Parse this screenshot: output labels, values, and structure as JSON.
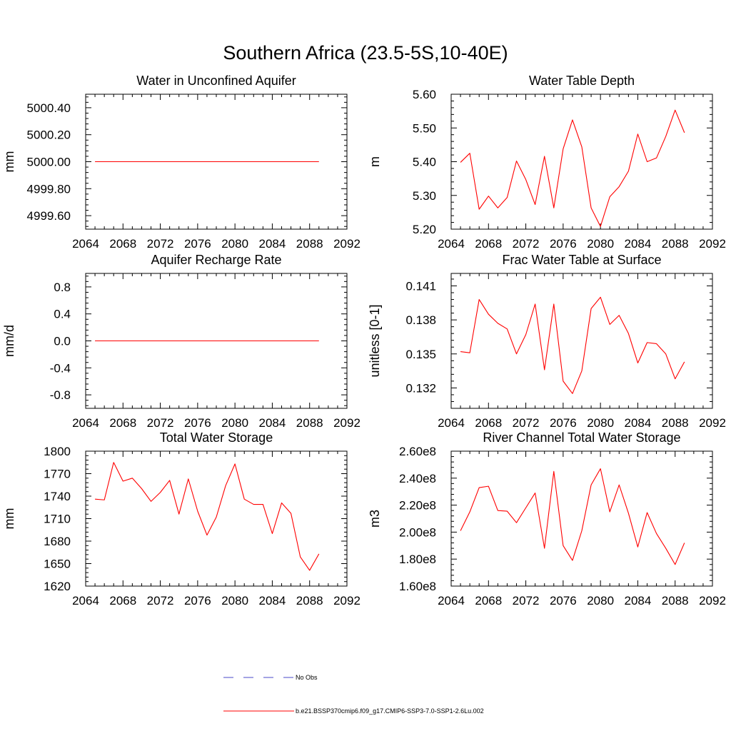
{
  "figure_title": "Southern Africa (23.5-5S,10-40E)",
  "colors": {
    "model": "#ff0000",
    "obs": "#4a4ac8"
  },
  "legend": {
    "obs_label": "No Obs",
    "model_label": "b.e21.BSSP370cmip6.f09_g17.CMIP6-SSP3-7.0-SSP1-2.6Lu.002"
  },
  "chart_data": [
    {
      "type": "line",
      "title": "Water in Unconfined Aquifer",
      "xlabel": "",
      "ylabel": "mm",
      "xlim": [
        2064,
        2092
      ],
      "ylim": [
        4999.5,
        5000.5
      ],
      "xticks": [
        2064,
        2068,
        2072,
        2076,
        2080,
        2084,
        2088,
        2092
      ],
      "yticks": [
        4999.6,
        4999.8,
        5000.0,
        5000.2,
        5000.4
      ],
      "ytick_labels": [
        "4999.60",
        "4999.80",
        "5000.00",
        "5000.20",
        "5000.40"
      ],
      "x": [
        2065,
        2066,
        2067,
        2068,
        2069,
        2070,
        2071,
        2072,
        2073,
        2074,
        2075,
        2076,
        2077,
        2078,
        2079,
        2080,
        2081,
        2082,
        2083,
        2084,
        2085,
        2086,
        2087,
        2088,
        2089
      ],
      "series": [
        {
          "values": [
            5000,
            5000,
            5000,
            5000,
            5000,
            5000,
            5000,
            5000,
            5000,
            5000,
            5000,
            5000,
            5000,
            5000,
            5000,
            5000,
            5000,
            5000,
            5000,
            5000,
            5000,
            5000,
            5000,
            5000,
            5000
          ]
        }
      ]
    },
    {
      "type": "line",
      "title": "Water Table Depth",
      "xlabel": "",
      "ylabel": "m",
      "xlim": [
        2064,
        2092
      ],
      "ylim": [
        5.2,
        5.6
      ],
      "xticks": [
        2064,
        2068,
        2072,
        2076,
        2080,
        2084,
        2088,
        2092
      ],
      "yticks": [
        5.2,
        5.3,
        5.4,
        5.5,
        5.6
      ],
      "ytick_labels": [
        "5.20",
        "5.30",
        "5.40",
        "5.50",
        "5.60"
      ],
      "x": [
        2065,
        2066,
        2067,
        2068,
        2069,
        2070,
        2071,
        2072,
        2073,
        2074,
        2075,
        2076,
        2077,
        2078,
        2079,
        2080,
        2081,
        2082,
        2083,
        2084,
        2085,
        2086,
        2087,
        2088,
        2089
      ],
      "series": [
        {
          "values": [
            5.398,
            5.425,
            5.259,
            5.298,
            5.263,
            5.294,
            5.402,
            5.347,
            5.273,
            5.416,
            5.263,
            5.438,
            5.524,
            5.444,
            5.263,
            5.208,
            5.296,
            5.326,
            5.372,
            5.482,
            5.4,
            5.411,
            5.475,
            5.553,
            5.486
          ]
        }
      ]
    },
    {
      "type": "line",
      "title": "Aquifer Recharge Rate",
      "xlabel": "",
      "ylabel": "mm/d",
      "xlim": [
        2064,
        2092
      ],
      "ylim": [
        -1.0,
        1.0
      ],
      "xticks": [
        2064,
        2068,
        2072,
        2076,
        2080,
        2084,
        2088,
        2092
      ],
      "yticks": [
        -0.8,
        -0.4,
        0.0,
        0.4,
        0.8
      ],
      "ytick_labels": [
        "-0.8",
        "-0.4",
        "0.0",
        "0.4",
        "0.8"
      ],
      "x": [
        2065,
        2066,
        2067,
        2068,
        2069,
        2070,
        2071,
        2072,
        2073,
        2074,
        2075,
        2076,
        2077,
        2078,
        2079,
        2080,
        2081,
        2082,
        2083,
        2084,
        2085,
        2086,
        2087,
        2088,
        2089
      ],
      "series": [
        {
          "values": [
            0,
            0,
            0,
            0,
            0,
            0,
            0,
            0,
            0,
            0,
            0,
            0,
            0,
            0,
            0,
            0,
            0,
            0,
            0,
            0,
            0,
            0,
            0,
            0,
            0
          ]
        }
      ]
    },
    {
      "type": "line",
      "title": "Frac Water Table at Surface",
      "xlabel": "",
      "ylabel": "unitless [0-1]",
      "xlim": [
        2064,
        2092
      ],
      "ylim": [
        0.1302,
        0.1421
      ],
      "xticks": [
        2064,
        2068,
        2072,
        2076,
        2080,
        2084,
        2088,
        2092
      ],
      "yticks": [
        0.132,
        0.135,
        0.138,
        0.141
      ],
      "ytick_labels": [
        "0.132",
        "0.135",
        "0.138",
        "0.141"
      ],
      "x": [
        2065,
        2066,
        2067,
        2068,
        2069,
        2070,
        2071,
        2072,
        2073,
        2074,
        2075,
        2076,
        2077,
        2078,
        2079,
        2080,
        2081,
        2082,
        2083,
        2084,
        2085,
        2086,
        2087,
        2088,
        2089
      ],
      "series": [
        {
          "values": [
            0.1352,
            0.1351,
            0.1398,
            0.1385,
            0.1377,
            0.1372,
            0.135,
            0.1367,
            0.1394,
            0.1336,
            0.1394,
            0.1326,
            0.1315,
            0.1335,
            0.139,
            0.14,
            0.1376,
            0.1384,
            0.1368,
            0.1342,
            0.136,
            0.1359,
            0.135,
            0.1328,
            0.1343
          ]
        }
      ]
    },
    {
      "type": "line",
      "title": "Total Water Storage",
      "xlabel": "",
      "ylabel": "mm",
      "xlim": [
        2064,
        2092
      ],
      "ylim": [
        1620,
        1800
      ],
      "xticks": [
        2064,
        2068,
        2072,
        2076,
        2080,
        2084,
        2088,
        2092
      ],
      "yticks": [
        1620,
        1650,
        1680,
        1710,
        1740,
        1770,
        1800
      ],
      "ytick_labels": [
        "1620",
        "1650",
        "1680",
        "1710",
        "1740",
        "1770",
        "1800"
      ],
      "x": [
        2065,
        2066,
        2067,
        2068,
        2069,
        2070,
        2071,
        2072,
        2073,
        2074,
        2075,
        2076,
        2077,
        2078,
        2079,
        2080,
        2081,
        2082,
        2083,
        2084,
        2085,
        2086,
        2087,
        2088,
        2089
      ],
      "series": [
        {
          "values": [
            1736,
            1735,
            1785,
            1760,
            1764,
            1750,
            1733,
            1745,
            1761,
            1716,
            1763,
            1720,
            1688,
            1712,
            1754,
            1783,
            1736,
            1729,
            1729,
            1690,
            1731,
            1717,
            1659,
            1641,
            1663
          ]
        }
      ]
    },
    {
      "type": "line",
      "title": "River Channel Total Water Storage",
      "xlabel": "",
      "ylabel": "m3",
      "xlim": [
        2064,
        2092
      ],
      "ylim": [
        160000000,
        260000000
      ],
      "xticks": [
        2064,
        2068,
        2072,
        2076,
        2080,
        2084,
        2088,
        2092
      ],
      "yticks": [
        160000000,
        180000000,
        200000000,
        220000000,
        240000000,
        260000000
      ],
      "ytick_labels": [
        "1.60e8",
        "1.80e8",
        "2.00e8",
        "2.20e8",
        "2.40e8",
        "2.60e8"
      ],
      "x": [
        2065,
        2066,
        2067,
        2068,
        2069,
        2070,
        2071,
        2072,
        2073,
        2074,
        2075,
        2076,
        2077,
        2078,
        2079,
        2080,
        2081,
        2082,
        2083,
        2084,
        2085,
        2086,
        2087,
        2088,
        2089
      ],
      "series": [
        {
          "values": [
            201000000,
            215000000,
            233000000,
            234000000,
            216000000,
            215500000,
            207000000,
            218000000,
            229000000,
            188000000,
            245000000,
            190000000,
            179000000,
            201000000,
            235000000,
            247000000,
            215000000,
            235000000,
            214000000,
            189000000,
            214500000,
            199000000,
            188000000,
            176000000,
            192000000
          ]
        }
      ]
    }
  ]
}
